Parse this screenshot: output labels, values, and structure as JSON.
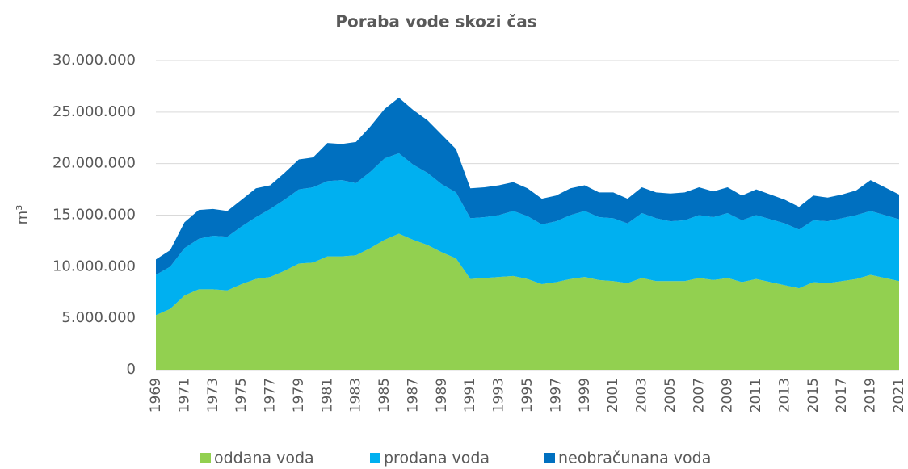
{
  "chart_data": {
    "type": "stacked_area",
    "title": "Poraba vode skozi čas",
    "y_label": "m³",
    "categories": [
      "1969",
      null,
      "1971",
      null,
      "1973",
      null,
      "1975",
      null,
      "1977",
      null,
      "1979",
      null,
      "1981",
      null,
      "1983",
      null,
      "1985",
      null,
      "1987",
      null,
      "1989",
      null,
      "1991",
      null,
      "1993",
      null,
      "1995",
      null,
      "1997",
      null,
      "1999",
      null,
      "2001",
      null,
      "2003",
      null,
      "2005",
      null,
      "2007",
      null,
      "2009",
      null,
      "2011",
      null,
      "2013",
      null,
      "2015",
      null,
      "2017",
      null,
      "2019",
      null,
      "2021"
    ],
    "series": [
      {
        "name": "oddana voda",
        "color": "#92d050",
        "values": [
          5300000,
          5900000,
          7200000,
          7800000,
          7800000,
          7700000,
          8300000,
          8800000,
          9000000,
          9600000,
          10300000,
          10400000,
          11000000,
          11000000,
          11100000,
          11800000,
          12600000,
          13200000,
          12600000,
          12100000,
          11400000,
          10800000,
          8800000,
          8900000,
          9000000,
          9100000,
          8800000,
          8300000,
          8500000,
          8800000,
          9000000,
          8700000,
          8600000,
          8400000,
          8900000,
          8600000,
          8600000,
          8600000,
          8900000,
          8700000,
          8900000,
          8500000,
          8800000,
          8500000,
          8200000,
          7900000,
          8500000,
          8400000,
          8600000,
          8800000,
          9200000,
          8900000,
          8600000
        ]
      },
      {
        "name": "prodana voda",
        "color": "#00b0f0",
        "values": [
          3900000,
          4100000,
          4600000,
          4900000,
          5200000,
          5200000,
          5600000,
          6000000,
          6600000,
          6900000,
          7200000,
          7300000,
          7300000,
          7400000,
          7000000,
          7400000,
          7900000,
          7800000,
          7300000,
          7000000,
          6600000,
          6400000,
          5900000,
          5900000,
          6000000,
          6300000,
          6100000,
          5800000,
          5900000,
          6200000,
          6400000,
          6100000,
          6100000,
          5800000,
          6300000,
          6100000,
          5800000,
          5900000,
          6100000,
          6100000,
          6300000,
          6000000,
          6200000,
          6100000,
          6000000,
          5700000,
          6000000,
          6000000,
          6100000,
          6200000,
          6200000,
          6100000,
          6000000
        ]
      },
      {
        "name": "neobračunana voda",
        "color": "#0070c0",
        "values": [
          1500000,
          1600000,
          2500000,
          2800000,
          2600000,
          2500000,
          2600000,
          2800000,
          2300000,
          2600000,
          2900000,
          2900000,
          3700000,
          3500000,
          4000000,
          4400000,
          4800000,
          5400000,
          5300000,
          5100000,
          4800000,
          4200000,
          2900000,
          2900000,
          2900000,
          2800000,
          2700000,
          2500000,
          2500000,
          2600000,
          2500000,
          2400000,
          2500000,
          2400000,
          2500000,
          2500000,
          2700000,
          2700000,
          2700000,
          2500000,
          2500000,
          2400000,
          2500000,
          2400000,
          2300000,
          2200000,
          2400000,
          2300000,
          2300000,
          2400000,
          3000000,
          2700000,
          2400000
        ]
      }
    ],
    "ylim": [
      0,
      30000000
    ],
    "yticks": [
      0,
      {
        "value": 5000000,
        "label": "5.000.000"
      },
      {
        "value": 10000000,
        "label": "10.000.000"
      },
      {
        "value": 15000000,
        "label": "15.000.000"
      },
      {
        "value": 20000000,
        "label": "20.000.000"
      },
      {
        "value": 25000000,
        "label": "25.000.000"
      },
      {
        "value": 30000000,
        "label": "30.000.000"
      }
    ],
    "grid": true,
    "legend": "bottom"
  }
}
